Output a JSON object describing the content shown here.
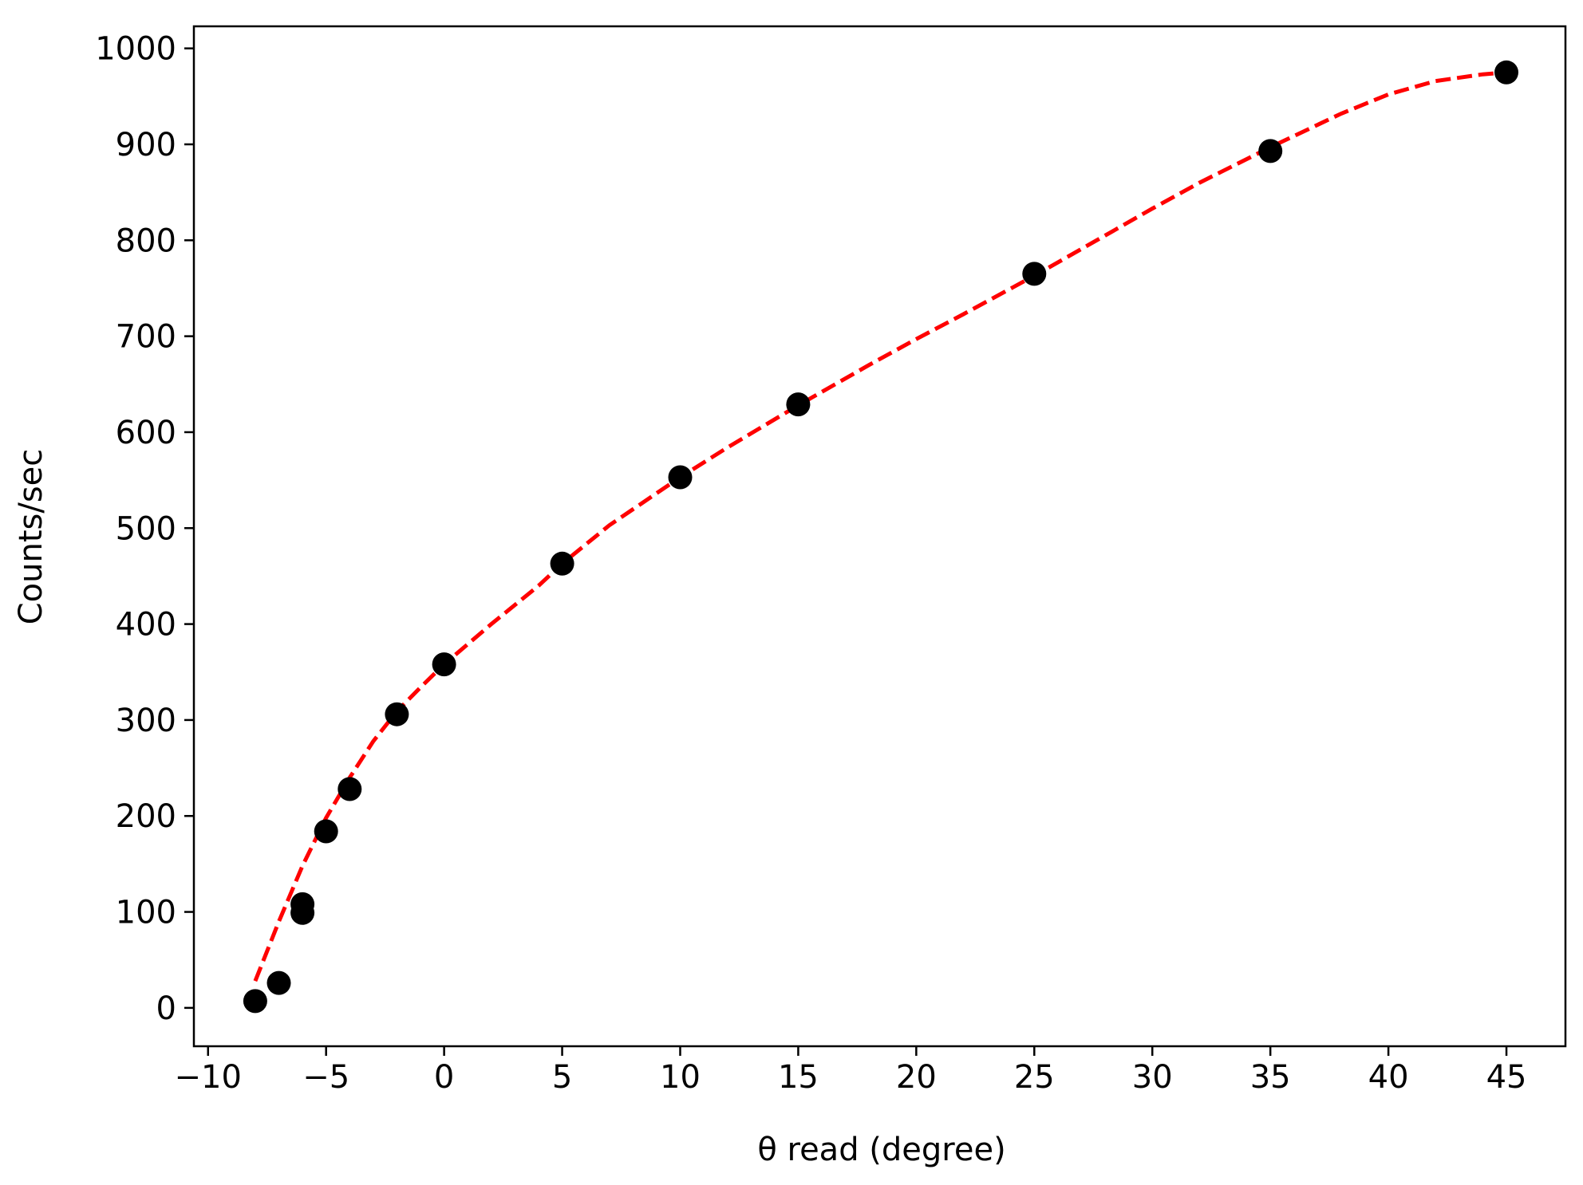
{
  "chart_data": {
    "type": "scatter",
    "title": "",
    "xlabel": "θ read (degree)",
    "ylabel": "Counts/sec",
    "xlim": [
      -10.6,
      47.5
    ],
    "ylim": [
      -40,
      1023
    ],
    "xticks": [
      -10,
      -5,
      0,
      5,
      10,
      15,
      20,
      25,
      30,
      35,
      40,
      45
    ],
    "xtick_labels": [
      "−10",
      "−5",
      "0",
      "5",
      "10",
      "15",
      "20",
      "25",
      "30",
      "35",
      "40",
      "45"
    ],
    "yticks": [
      0,
      100,
      200,
      300,
      400,
      500,
      600,
      700,
      800,
      900,
      1000
    ],
    "ytick_labels": [
      "0",
      "100",
      "200",
      "300",
      "400",
      "500",
      "600",
      "700",
      "800",
      "900",
      "1000"
    ],
    "grid": false,
    "series": [
      {
        "kind": "scatter",
        "color": "#000000",
        "marker": "circle",
        "points": [
          [
            -8,
            7
          ],
          [
            -7,
            26
          ],
          [
            -6,
            108
          ],
          [
            -6,
            99
          ],
          [
            -5,
            184
          ],
          [
            -4,
            228
          ],
          [
            -2,
            306
          ],
          [
            0,
            358
          ],
          [
            5,
            463
          ],
          [
            10,
            553
          ],
          [
            15,
            629
          ],
          [
            25,
            765
          ],
          [
            35,
            893
          ],
          [
            45,
            975
          ]
        ]
      },
      {
        "kind": "fit-line",
        "color": "#ff0000",
        "style": "dashed",
        "points": [
          [
            -8,
            28
          ],
          [
            -7,
            90
          ],
          [
            -6,
            148
          ],
          [
            -5,
            198
          ],
          [
            -4,
            240
          ],
          [
            -3,
            278
          ],
          [
            -2,
            309
          ],
          [
            -1,
            334
          ],
          [
            0,
            358
          ],
          [
            2,
            400
          ],
          [
            4,
            440
          ],
          [
            5,
            463
          ],
          [
            7,
            503
          ],
          [
            10,
            553
          ],
          [
            12,
            584
          ],
          [
            15,
            628
          ],
          [
            18,
            670
          ],
          [
            20,
            697
          ],
          [
            22,
            723
          ],
          [
            25,
            763
          ],
          [
            28,
            805
          ],
          [
            30,
            833
          ],
          [
            32,
            860
          ],
          [
            35,
            897
          ],
          [
            38,
            932
          ],
          [
            40,
            952
          ],
          [
            42,
            966
          ],
          [
            44,
            973
          ],
          [
            45,
            975
          ]
        ]
      }
    ]
  }
}
